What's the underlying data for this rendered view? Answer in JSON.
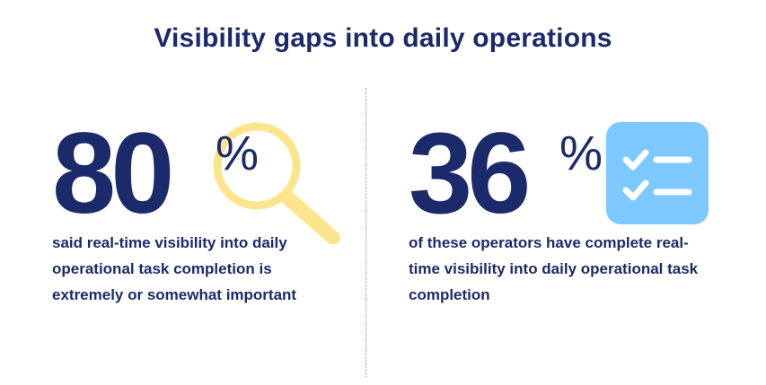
{
  "title": "Visibility gaps into daily operations",
  "colors": {
    "primary": "#1b2a6b",
    "magnifier": "#fde58e",
    "checklist_bg": "#7cc8ff",
    "divider": "#8a8fa8"
  },
  "stats": [
    {
      "value": "80",
      "unit": "%",
      "icon": "magnifying-glass-icon",
      "description": "said real-time visibility into daily operational task completion is extremely or somewhat important"
    },
    {
      "value": "36",
      "unit": "%",
      "icon": "checklist-icon",
      "description": "of these operators have complete real-time visibility into daily operational task completion"
    }
  ]
}
